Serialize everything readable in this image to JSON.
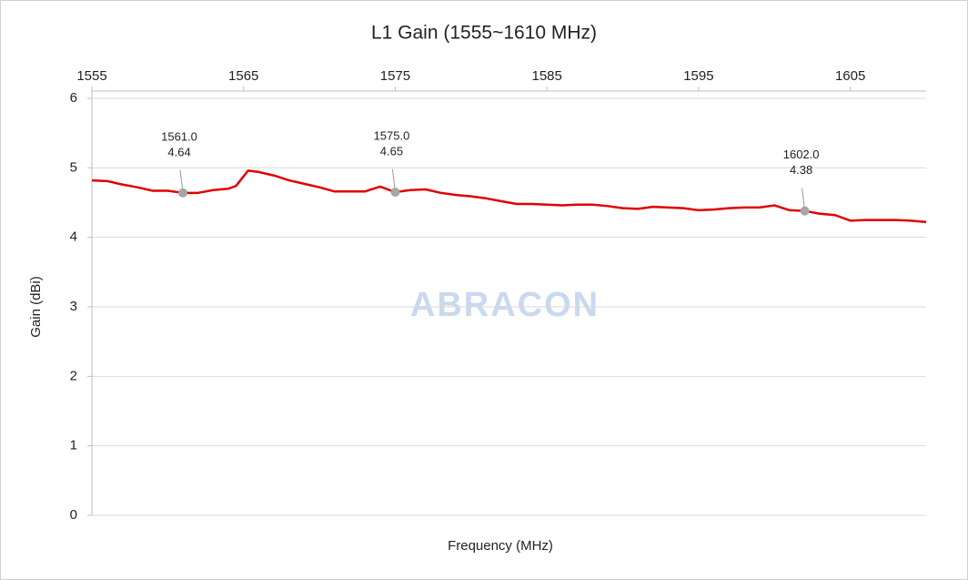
{
  "chart_data": {
    "type": "line",
    "title": "L1 Gain (1555~1610 MHz)",
    "x_label": "Frequency (MHz)",
    "y_label": "Gain (dBi)",
    "watermark": "ABRACON",
    "x": [
      1555,
      1556,
      1557,
      1558,
      1559,
      1560,
      1561,
      1562,
      1563,
      1564,
      1564.5,
      1565.3,
      1566,
      1567,
      1568,
      1569,
      1570,
      1571,
      1572,
      1573,
      1574,
      1575,
      1576,
      1577,
      1578,
      1579,
      1580,
      1581,
      1582,
      1583,
      1584,
      1585,
      1586,
      1587,
      1588,
      1589,
      1590,
      1591,
      1592,
      1593,
      1594,
      1595,
      1596,
      1597,
      1598,
      1599,
      1600,
      1601,
      1602,
      1603,
      1604,
      1605,
      1606,
      1607,
      1608,
      1609,
      1610
    ],
    "series": [
      {
        "name": "L1 Gain",
        "color": "#e00000",
        "values": [
          4.82,
          4.81,
          4.76,
          4.72,
          4.67,
          4.67,
          4.64,
          4.64,
          4.68,
          4.7,
          4.74,
          4.96,
          4.94,
          4.89,
          4.82,
          4.77,
          4.72,
          4.66,
          4.66,
          4.66,
          4.73,
          4.65,
          4.68,
          4.69,
          4.64,
          4.61,
          4.59,
          4.56,
          4.52,
          4.48,
          4.48,
          4.47,
          4.46,
          4.47,
          4.47,
          4.45,
          4.42,
          4.41,
          4.44,
          4.43,
          4.42,
          4.39,
          4.4,
          4.42,
          4.43,
          4.43,
          4.46,
          4.39,
          4.38,
          4.34,
          4.32,
          4.24,
          4.25,
          4.25,
          4.25,
          4.24,
          4.22
        ]
      }
    ],
    "annotations": [
      {
        "x": 1561,
        "y": 4.64,
        "x_label": "1561.0",
        "y_label": "4.64"
      },
      {
        "x": 1575,
        "y": 4.65,
        "x_label": "1575.0",
        "y_label": "4.65"
      },
      {
        "x": 1602,
        "y": 4.38,
        "x_label": "1602.0",
        "y_label": "4.38"
      }
    ],
    "xlim": [
      1555,
      1610
    ],
    "xticks": [
      1555,
      1565,
      1575,
      1585,
      1595,
      1605
    ],
    "ylim": [
      0,
      6
    ],
    "yticks": [
      0,
      1,
      2,
      3,
      4,
      5,
      6
    ],
    "grid": true
  }
}
